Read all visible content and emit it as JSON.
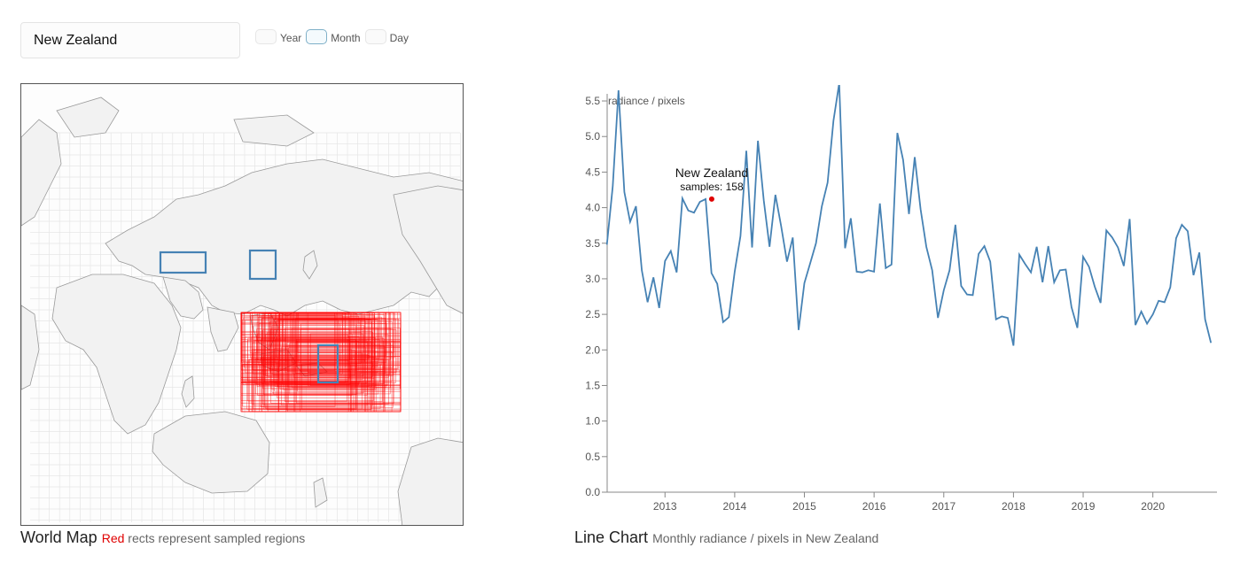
{
  "search": {
    "value": "New Zealand"
  },
  "granularity": {
    "options": [
      {
        "label": "Year",
        "active": false
      },
      {
        "label": "Month",
        "active": true
      },
      {
        "label": "Day",
        "active": false
      }
    ]
  },
  "map_caption": {
    "title": "World Map",
    "highlight": "Red",
    "rest": " rects represent sampled regions"
  },
  "chart_caption": {
    "title": "Line Chart",
    "subtitle": "Monthly radiance / pixels in New Zealand"
  },
  "colors": {
    "line": "#4682b4",
    "sample_rect": "#ff0000",
    "region_rect": "#4682b4",
    "land": "#f2f2f2",
    "border": "#9a9a9a"
  },
  "tooltip": {
    "title": "New Zealand",
    "samples_text": "samples: 158",
    "x": 2013.67,
    "y": 4.12
  },
  "chart_data": {
    "type": "line",
    "ylabel": "radiance / pixels",
    "xlim": [
      2012.17,
      2020.92
    ],
    "ylim": [
      0,
      5.6
    ],
    "x_ticks": [
      2013,
      2014,
      2015,
      2016,
      2017,
      2018,
      2019,
      2020
    ],
    "x_tick_labels": [
      "2013",
      "2014",
      "2015",
      "2016",
      "2017",
      "2018",
      "2019",
      "2020"
    ],
    "y_ticks": [
      0.0,
      0.5,
      1.0,
      1.5,
      2.0,
      2.5,
      3.0,
      3.5,
      4.0,
      4.5,
      5.0,
      5.5
    ],
    "y_tick_labels": [
      "0.0",
      "0.5",
      "1.0",
      "1.5",
      "2.0",
      "2.5",
      "3.0",
      "3.5",
      "4.0",
      "4.5",
      "5.0",
      "5.5"
    ],
    "start": "2012-03",
    "values": [
      3.48,
      4.3,
      5.65,
      4.22,
      3.8,
      4.02,
      3.12,
      2.67,
      3.02,
      2.59,
      3.25,
      3.39,
      3.09,
      4.13,
      3.96,
      3.93,
      4.08,
      4.12,
      3.08,
      2.93,
      2.39,
      2.46,
      3.1,
      3.6,
      4.8,
      3.44,
      4.94,
      4.1,
      3.45,
      4.18,
      3.74,
      3.24,
      3.58,
      2.28,
      2.94,
      3.22,
      3.5,
      4.02,
      4.35,
      5.22,
      5.75,
      3.43,
      3.85,
      3.1,
      3.09,
      3.12,
      3.1,
      4.06,
      3.15,
      3.2,
      5.05,
      4.67,
      3.91,
      4.71,
      3.98,
      3.45,
      3.12,
      2.45,
      2.84,
      3.12,
      3.76,
      2.9,
      2.78,
      2.77,
      3.35,
      3.46,
      3.24,
      2.43,
      2.47,
      2.45,
      2.06,
      3.34,
      3.21,
      3.09,
      3.45,
      2.95,
      3.46,
      2.95,
      3.12,
      3.13,
      2.6,
      2.31,
      3.31,
      3.17,
      2.89,
      2.66,
      3.68,
      3.58,
      3.44,
      3.18,
      3.84,
      2.35,
      2.54,
      2.37,
      2.5,
      2.69,
      2.67,
      2.88,
      3.57,
      3.76,
      3.67,
      3.05,
      3.37,
      2.43,
      2.1
    ]
  }
}
